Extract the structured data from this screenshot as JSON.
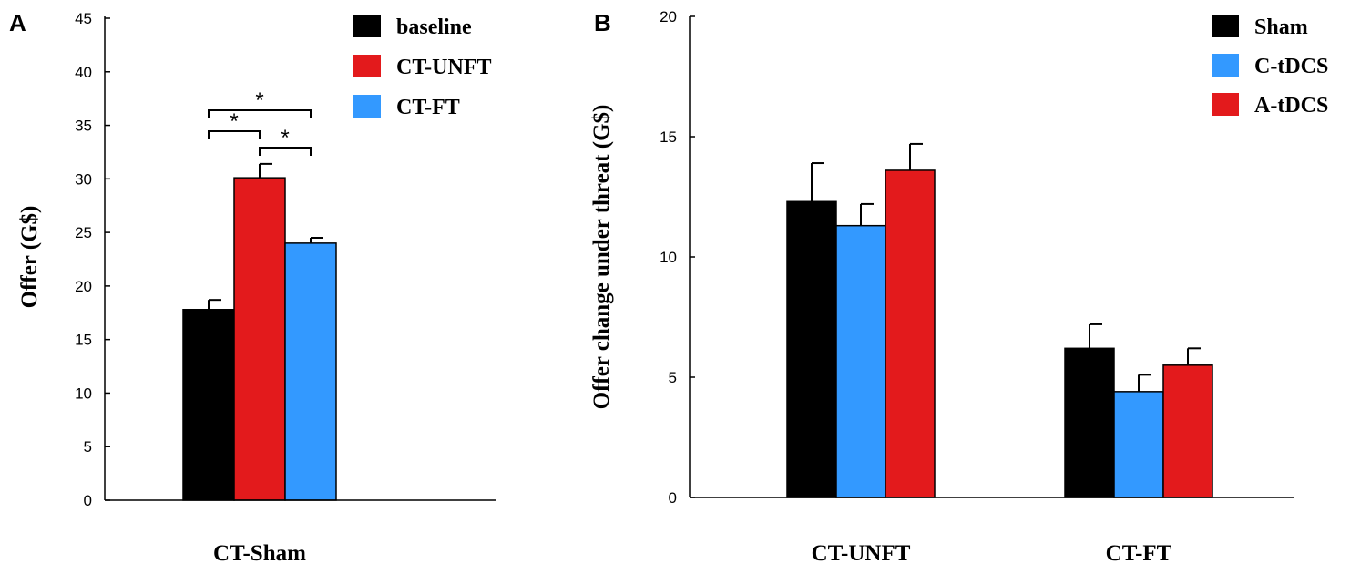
{
  "chart_data": [
    {
      "type": "bar",
      "panel_label": "A",
      "title": "",
      "xlabel": "",
      "ylabel": "Offer (G$)",
      "ylim": [
        0,
        45
      ],
      "yticks": [
        0,
        5,
        10,
        15,
        20,
        25,
        30,
        35,
        40,
        45
      ],
      "grid": false,
      "legend_position": "top-right",
      "categories": [
        "CT-Sham"
      ],
      "series": [
        {
          "name": "baseline",
          "color": "#000000",
          "values": [
            17.8
          ],
          "errors": [
            0.9
          ]
        },
        {
          "name": "CT-UNFT",
          "color": "#e31a1c",
          "values": [
            30.1
          ],
          "errors": [
            1.3
          ]
        },
        {
          "name": "CT-FT",
          "color": "#3399ff",
          "values": [
            24.0
          ],
          "errors": [
            0.5
          ]
        }
      ],
      "significance": [
        {
          "from": 0,
          "to": 1,
          "label": "*"
        },
        {
          "from": 1,
          "to": 2,
          "label": "*"
        },
        {
          "from": 0,
          "to": 2,
          "label": "*"
        }
      ]
    },
    {
      "type": "bar",
      "panel_label": "B",
      "title": "",
      "xlabel": "",
      "ylabel": "Offer change under threat (G$)",
      "ylim": [
        0,
        20
      ],
      "yticks": [
        0,
        5,
        10,
        15,
        20
      ],
      "grid": false,
      "legend_position": "top-right",
      "categories": [
        "CT-UNFT",
        "CT-FT"
      ],
      "series": [
        {
          "name": "Sham",
          "color": "#000000",
          "values": [
            12.3,
            6.2
          ],
          "errors": [
            1.6,
            1.0
          ]
        },
        {
          "name": "C-tDCS",
          "color": "#3399ff",
          "values": [
            11.3,
            4.4
          ],
          "errors": [
            0.9,
            0.7
          ]
        },
        {
          "name": "A-tDCS",
          "color": "#e31a1c",
          "values": [
            13.6,
            5.5
          ],
          "errors": [
            1.1,
            0.7
          ]
        }
      ]
    }
  ]
}
